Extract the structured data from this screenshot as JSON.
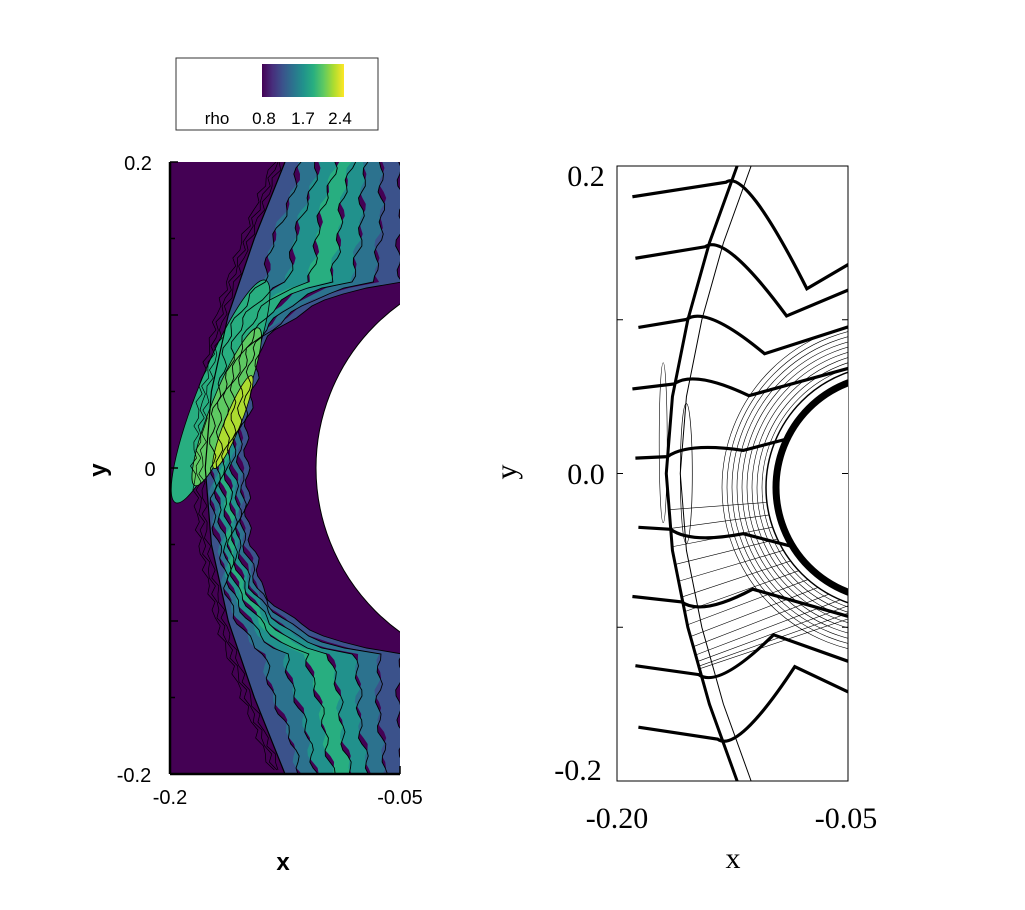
{
  "colors": {
    "colormap": [
      "#440154",
      "#472d7b",
      "#3b528b",
      "#2c728e",
      "#21918c",
      "#28ae80",
      "#5ec962",
      "#addc30",
      "#fde725"
    ],
    "line": "#000000",
    "background": "#ffffff"
  },
  "chart_data": [
    {
      "type": "heatmap",
      "title": "",
      "xlabel": "x",
      "ylabel": "y",
      "xlim": [
        -0.2,
        -0.05
      ],
      "ylim": [
        -0.2,
        0.2
      ],
      "xticks": [
        "-0.2",
        "-0.05"
      ],
      "yticks": [
        "0.2",
        "0",
        "-0.2"
      ],
      "legend": {
        "position": "top",
        "variable": "rho",
        "ticks": [
          "0.8",
          "1.7",
          "2.4"
        ],
        "range": [
          0.5,
          2.6
        ]
      },
      "field": "density contours around cylinder",
      "body": {
        "shape": "circle",
        "center": [
          -0.05,
          0.0
        ],
        "radius": 0.12
      },
      "shock": [
        [
          -0.125,
          0.2
        ],
        [
          -0.145,
          0.15
        ],
        [
          -0.162,
          0.1
        ],
        [
          -0.173,
          0.05
        ],
        [
          -0.177,
          0.0
        ],
        [
          -0.173,
          -0.05
        ],
        [
          -0.162,
          -0.1
        ],
        [
          -0.145,
          -0.15
        ],
        [
          -0.125,
          -0.2
        ]
      ]
    },
    {
      "type": "line",
      "title": "",
      "xlabel": "x",
      "ylabel": "y",
      "xlim": [
        -0.2,
        -0.05
      ],
      "ylim": [
        -0.2,
        0.2
      ],
      "xticks": [
        "-0.20",
        "-0.05"
      ],
      "yticks": [
        "0.2",
        "0.0",
        "-0.2"
      ],
      "body": {
        "shape": "circle",
        "center": [
          -0.05,
          0.0
        ],
        "radius": 0.08
      },
      "shock": [
        [
          -0.122,
          0.2
        ],
        [
          -0.14,
          0.15
        ],
        [
          -0.154,
          0.1
        ],
        [
          -0.164,
          0.05
        ],
        [
          -0.168,
          0.0
        ],
        [
          -0.164,
          -0.05
        ],
        [
          -0.154,
          -0.1
        ],
        [
          -0.14,
          -0.15
        ],
        [
          -0.122,
          -0.2
        ]
      ],
      "streamline_inlets_y": [
        0.18,
        0.14,
        0.095,
        0.055,
        0.01,
        -0.035,
        -0.08,
        -0.125,
        -0.165
      ]
    }
  ]
}
